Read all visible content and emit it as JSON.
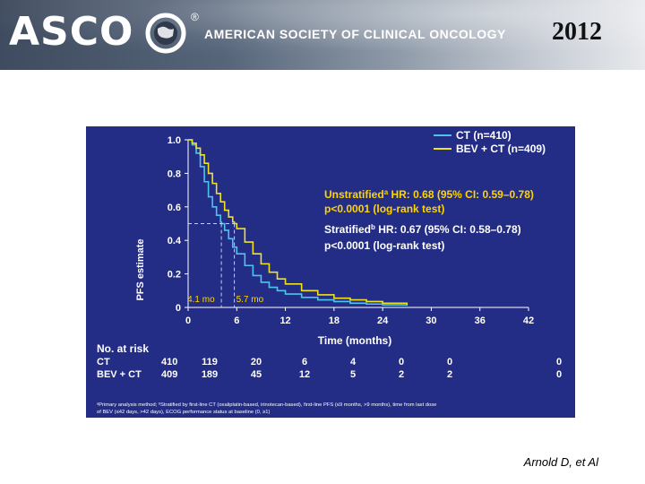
{
  "header": {
    "logo_text": "ASCO",
    "org_name": "AMERICAN SOCIETY OF CLINICAL ONCOLOGY",
    "registered": "®",
    "year": "2012"
  },
  "colors": {
    "panel_bg": "#232d86",
    "ct_line": "#4fc3ec",
    "bev_line": "#f2e21c",
    "highlight_text": "#ffd400",
    "text": "#ffffff"
  },
  "chart_data": {
    "type": "line",
    "ylabel": "PFS estimate",
    "xlabel": "Time (months)",
    "xlim": [
      0,
      42
    ],
    "ylim": [
      0,
      1.0
    ],
    "x_ticks": [
      0,
      6,
      12,
      18,
      24,
      30,
      36,
      42
    ],
    "y_ticks": [
      0,
      0.2,
      0.4,
      0.6,
      0.8,
      1.0
    ],
    "y_tick_labels": [
      "0",
      "0.2",
      "0.4",
      "0.6",
      "0.8",
      "1.0"
    ],
    "series": [
      {
        "name": "CT (n=410)",
        "color": "#4fc3ec",
        "x": [
          0,
          0.5,
          1,
          1.5,
          2,
          2.5,
          3,
          3.5,
          4,
          4.1,
          4.5,
          5,
          5.5,
          6,
          7,
          8,
          9,
          10,
          11,
          12,
          14,
          16,
          18,
          20,
          22,
          24,
          27
        ],
        "y": [
          1.0,
          0.97,
          0.92,
          0.84,
          0.75,
          0.66,
          0.6,
          0.55,
          0.51,
          0.5,
          0.46,
          0.41,
          0.36,
          0.32,
          0.25,
          0.19,
          0.15,
          0.12,
          0.1,
          0.08,
          0.06,
          0.045,
          0.035,
          0.025,
          0.02,
          0.015,
          0.01
        ]
      },
      {
        "name": "BEV + CT (n=409)",
        "color": "#f2e21c",
        "x": [
          0,
          0.5,
          1,
          1.5,
          2,
          2.5,
          3,
          3.5,
          4,
          4.5,
          5,
          5.5,
          5.7,
          6,
          7,
          8,
          9,
          10,
          11,
          12,
          14,
          16,
          18,
          20,
          22,
          24,
          27
        ],
        "y": [
          1.0,
          0.98,
          0.95,
          0.91,
          0.86,
          0.8,
          0.74,
          0.68,
          0.63,
          0.58,
          0.54,
          0.51,
          0.5,
          0.47,
          0.39,
          0.32,
          0.26,
          0.21,
          0.17,
          0.14,
          0.1,
          0.075,
          0.055,
          0.045,
          0.035,
          0.025,
          0.015
        ]
      }
    ],
    "median_markers": [
      {
        "label": "4.1 mo",
        "x": 4.1,
        "y": 0.5
      },
      {
        "label": "5.7 mo",
        "x": 5.7,
        "y": 0.5
      }
    ],
    "annotations": {
      "unstratified_prefix": "Unstratified",
      "unstratified_sup": "a",
      "unstratified_hr": " HR: 0.68 (95% CI: 0.59–0.78)",
      "unstratified_p": "p<0.0001 (log-rank test)",
      "stratified_prefix": "Stratified",
      "stratified_sup": "b",
      "stratified_hr": " HR: 0.67 (95% CI: 0.58–0.78)",
      "stratified_p": "p<0.0001 (log-rank test)"
    },
    "risk_table": {
      "title": "No. at risk",
      "rows": [
        {
          "label": "CT",
          "values": [
            "410",
            "119",
            "20",
            "6",
            "4",
            "0",
            "0",
            "0"
          ]
        },
        {
          "label": "BEV + CT",
          "values": [
            "409",
            "189",
            "45",
            "12",
            "5",
            "2",
            "2",
            "0"
          ]
        }
      ]
    },
    "footnote_line1": "ᵃPrimary analysis method; ᵇStratified by first-line CT (oxaliplatin-based, irinotecan-based), first-line PFS (≤9 months, >9 months), time from last dose",
    "footnote_line2": "of BEV (≤42 days, >42 days), ECOG performance status at baseline (0, ≥1)"
  },
  "citation": "Arnold D, et Al"
}
